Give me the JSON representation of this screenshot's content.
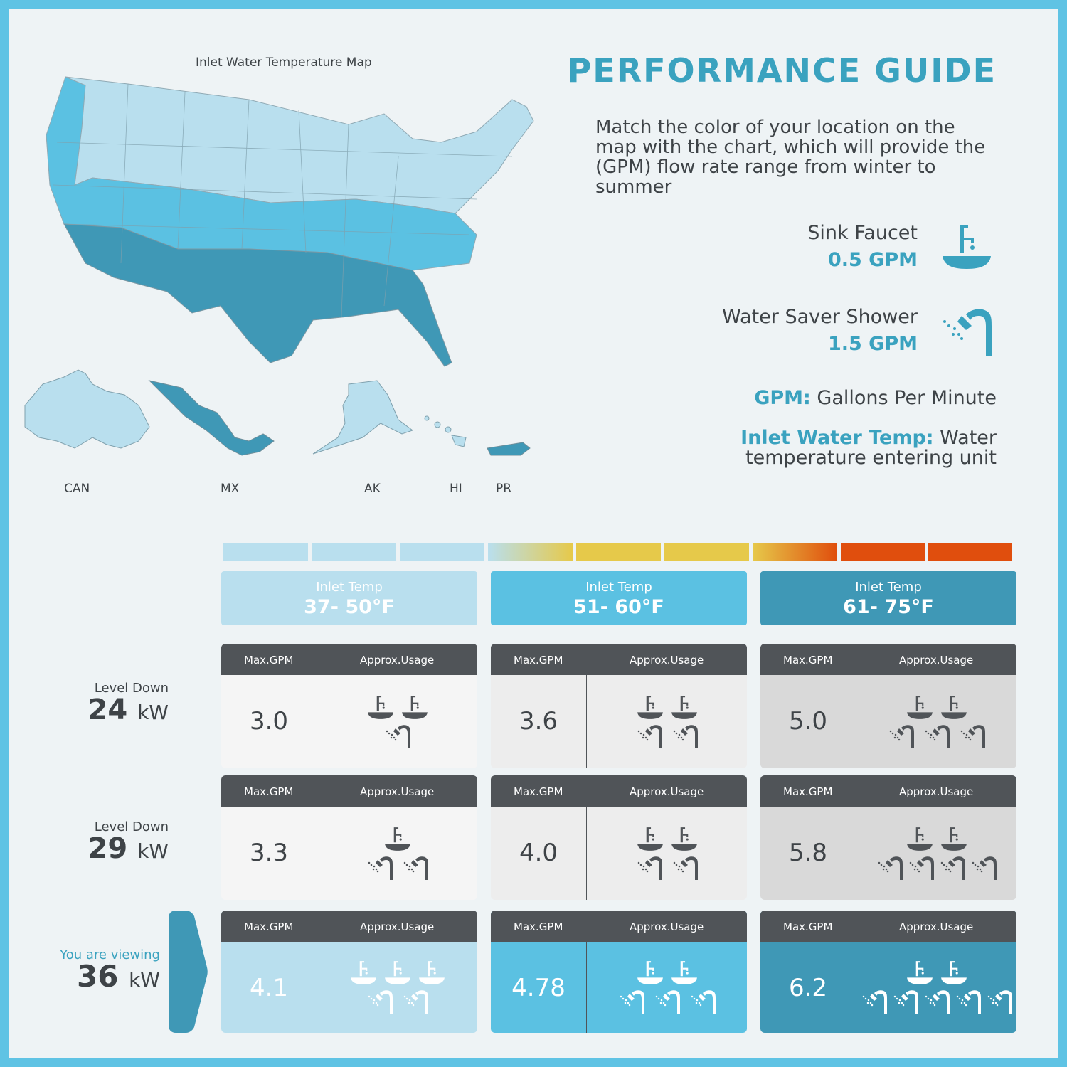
{
  "map": {
    "title": "Inlet Water Temperature Map",
    "labels": [
      "CAN",
      "MX",
      "AK",
      "HI",
      "PR"
    ]
  },
  "guide": {
    "title": "PERFORMANCE GUIDE",
    "description": "Match the color of your location on the map with the chart, which will provide the (GPM) flow rate range from winter to summer",
    "devices": [
      {
        "name": "Sink Faucet",
        "gpm": "0.5 GPM",
        "icon": "faucet-icon"
      },
      {
        "name": "Water Saver Shower",
        "gpm": "1.5 GPM",
        "icon": "shower-icon"
      }
    ],
    "definitions": [
      {
        "term": "GPM:",
        "text": " Gallons Per Minute"
      },
      {
        "term": "Inlet Water Temp:",
        "text": " Water temperature entering unit"
      }
    ]
  },
  "colors": {
    "cold": "#b9dfee",
    "mild": "#5bc1e2",
    "warm": "#3f98b6",
    "header_dark": "#505458",
    "accent": "#3aa2bf"
  },
  "temps": [
    {
      "label": "Inlet Temp",
      "range": "37- 50°F"
    },
    {
      "label": "Inlet Temp",
      "range": "51- 60°F"
    },
    {
      "label": "Inlet Temp",
      "range": "61- 75°F"
    }
  ],
  "table": {
    "col_max": "Max.GPM",
    "col_usage": "Approx.Usage",
    "rows": [
      {
        "sub": "Level Down",
        "kw": "24",
        "unit": "kW",
        "cells": [
          {
            "gpm": "3.0",
            "faucets": 2,
            "showers": 1
          },
          {
            "gpm": "3.6",
            "faucets": 2,
            "showers": 2
          },
          {
            "gpm": "5.0",
            "faucets": 2,
            "showers": 3
          }
        ]
      },
      {
        "sub": "Level Down",
        "kw": "29",
        "unit": "kW",
        "cells": [
          {
            "gpm": "3.3",
            "faucets": 1,
            "showers": 2
          },
          {
            "gpm": "4.0",
            "faucets": 2,
            "showers": 2
          },
          {
            "gpm": "5.8",
            "faucets": 2,
            "showers": 4
          }
        ]
      },
      {
        "sub": "You are viewing",
        "kw": "36",
        "unit": "kW",
        "cells": [
          {
            "gpm": "4.1",
            "faucets": 3,
            "showers": 2
          },
          {
            "gpm": "4.78",
            "faucets": 2,
            "showers": 3
          },
          {
            "gpm": "6.2",
            "faucets": 2,
            "showers": 5
          }
        ]
      }
    ]
  }
}
